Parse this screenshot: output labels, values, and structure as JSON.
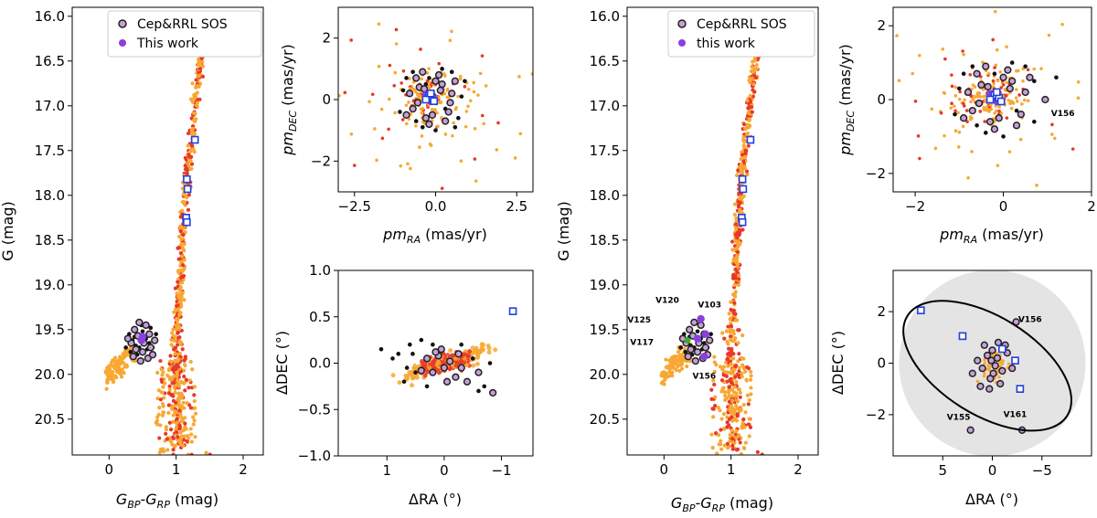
{
  "colors": {
    "orange": "#f7a833",
    "red": "#e8382a",
    "black": "#111111",
    "member_fill": "#c79fd6",
    "member_edge": "#222222",
    "purple": "#8a3fe0",
    "blue": "#1f3fe0",
    "green": "#33b033",
    "disk": "#e4e4e4"
  },
  "legend_left": {
    "entry1": "Cep&RRL SOS",
    "entry2": "This work"
  },
  "legend_right": {
    "entry1": "Cep&RRL SOS",
    "entry2": "this work"
  },
  "chart_data": [
    {
      "id": "cmd_left",
      "type": "scatter",
      "xlabel_main": "G",
      "xlabel_sub1": "BP",
      "xlabel_dash": "-G",
      "xlabel_sub2": "RP",
      "xlabel_unit": " (mag)",
      "ylabel": "G (mag)",
      "xlim": [
        -0.55,
        2.3
      ],
      "ylim": [
        20.9,
        15.9
      ],
      "xticks": [
        0,
        1,
        2
      ],
      "yticks": [
        16.0,
        16.5,
        17.0,
        17.5,
        18.0,
        18.5,
        19.0,
        19.5,
        20.0,
        20.5
      ],
      "blue_squares": [
        [
          1.28,
          17.38
        ],
        [
          1.16,
          17.82
        ],
        [
          1.17,
          17.93
        ],
        [
          1.15,
          18.25
        ],
        [
          1.16,
          18.3
        ]
      ],
      "purple_points": [
        [
          0.48,
          19.62
        ],
        [
          0.5,
          19.58
        ]
      ],
      "member_points": [
        [
          0.38,
          19.5
        ],
        [
          0.45,
          19.42
        ],
        [
          0.55,
          19.45
        ],
        [
          0.6,
          19.55
        ],
        [
          0.62,
          19.7
        ],
        [
          0.5,
          19.75
        ],
        [
          0.4,
          19.72
        ],
        [
          0.33,
          19.65
        ],
        [
          0.47,
          19.85
        ],
        [
          0.58,
          19.82
        ],
        [
          0.68,
          19.62
        ],
        [
          0.28,
          19.6
        ],
        [
          0.52,
          19.65
        ],
        [
          0.43,
          19.57
        ],
        [
          0.36,
          19.8
        ],
        [
          0.65,
          19.78
        ]
      ],
      "black_points": [
        [
          0.3,
          19.55
        ],
        [
          0.35,
          19.62
        ],
        [
          0.4,
          19.68
        ],
        [
          0.45,
          19.7
        ],
        [
          0.55,
          19.6
        ],
        [
          0.6,
          19.65
        ],
        [
          0.42,
          19.78
        ],
        [
          0.5,
          19.52
        ],
        [
          0.65,
          19.7
        ],
        [
          0.32,
          19.75
        ],
        [
          0.7,
          19.55
        ],
        [
          0.25,
          19.7
        ],
        [
          0.57,
          19.72
        ],
        [
          0.38,
          19.58
        ],
        [
          0.48,
          19.45
        ],
        [
          0.62,
          19.48
        ]
      ]
    },
    {
      "id": "pm_left",
      "type": "scatter",
      "xlabel_main": "pm",
      "xlabel_sub": "RA",
      "xlabel_unit": " (mas/yr)",
      "ylabel_main": "pm",
      "ylabel_sub": "DEC",
      "ylabel_unit": " (mas/yr)",
      "xlim": [
        -3.0,
        3.0
      ],
      "ylim": [
        -3.0,
        3.0
      ],
      "xticks": [
        -2.5,
        0.0,
        2.5
      ],
      "yticks": [
        -2,
        0,
        2
      ],
      "purple_points": [
        [
          -0.2,
          0.1
        ],
        [
          -0.1,
          0.0
        ],
        [
          -0.3,
          0.15
        ],
        [
          -0.15,
          -0.05
        ],
        [
          -0.25,
          0.05
        ]
      ],
      "blue_squares": [
        [
          -0.2,
          0.12
        ],
        [
          -0.1,
          0.05
        ],
        [
          -0.3,
          0.0
        ],
        [
          -0.15,
          0.2
        ],
        [
          -0.05,
          -0.05
        ]
      ],
      "member_points": [
        [
          -0.5,
          0.4
        ],
        [
          0.2,
          0.5
        ],
        [
          -0.7,
          -0.3
        ],
        [
          0.4,
          -0.4
        ],
        [
          -0.3,
          -0.6
        ],
        [
          0.1,
          0.8
        ],
        [
          -0.8,
          0.2
        ],
        [
          0.5,
          0.2
        ],
        [
          -0.1,
          -0.5
        ],
        [
          -0.6,
          0.7
        ],
        [
          0.3,
          -0.7
        ],
        [
          -0.4,
          0.9
        ],
        [
          0.6,
          0.6
        ],
        [
          -0.9,
          -0.5
        ],
        [
          0.0,
          0.6
        ],
        [
          -0.2,
          -0.8
        ],
        [
          0.45,
          -0.1
        ],
        [
          -0.55,
          -0.1
        ],
        [
          0.15,
          0.3
        ],
        [
          -0.35,
          0.35
        ]
      ],
      "black_points": [
        [
          0.9,
          0.6
        ],
        [
          -1.0,
          0.3
        ],
        [
          -0.7,
          0.9
        ],
        [
          0.7,
          -0.6
        ],
        [
          -0.4,
          -0.9
        ],
        [
          0.2,
          1.0
        ],
        [
          -1.1,
          -0.4
        ],
        [
          0.5,
          0.9
        ],
        [
          -0.2,
          0.7
        ],
        [
          0.3,
          -0.3
        ],
        [
          -0.6,
          -0.7
        ],
        [
          0.8,
          0.1
        ],
        [
          -0.9,
          0.7
        ],
        [
          0.0,
          -1.0
        ],
        [
          -0.3,
          0.5
        ],
        [
          0.6,
          -0.9
        ]
      ]
    },
    {
      "id": "sky_left",
      "type": "scatter",
      "xlabel": "ΔRA (°)",
      "ylabel": "ΔDEC (°)",
      "xlim": [
        1.85,
        -1.55
      ],
      "ylim": [
        -1.0,
        1.0
      ],
      "xticks": [
        1,
        0,
        -1
      ],
      "yticks": [
        -1.0,
        -0.5,
        0.0,
        0.5,
        1.0
      ],
      "blue_squares": [
        [
          -1.2,
          0.56
        ]
      ],
      "member_points": [
        [
          0.3,
          0.05
        ],
        [
          0.1,
          0.08
        ],
        [
          -0.1,
          0.02
        ],
        [
          -0.3,
          -0.05
        ],
        [
          0.2,
          -0.1
        ],
        [
          -0.2,
          -0.15
        ],
        [
          0.0,
          -0.05
        ],
        [
          0.15,
          0.12
        ],
        [
          -0.4,
          -0.2
        ],
        [
          -0.6,
          -0.1
        ],
        [
          -0.85,
          -0.32
        ],
        [
          -0.25,
          0.1
        ],
        [
          0.4,
          -0.08
        ],
        [
          -0.05,
          -0.2
        ],
        [
          0.05,
          0.15
        ]
      ],
      "black_points": [
        [
          0.6,
          0.2
        ],
        [
          0.8,
          0.1
        ],
        [
          0.5,
          -0.1
        ],
        [
          0.7,
          -0.2
        ],
        [
          0.4,
          0.25
        ],
        [
          -0.5,
          0.05
        ],
        [
          -0.7,
          -0.25
        ],
        [
          0.9,
          0.05
        ],
        [
          0.3,
          -0.25
        ],
        [
          -0.3,
          0.2
        ],
        [
          -0.8,
          0.0
        ],
        [
          0.55,
          0.1
        ],
        [
          -0.6,
          -0.3
        ],
        [
          0.2,
          0.2
        ],
        [
          1.1,
          0.15
        ],
        [
          0.65,
          -0.05
        ]
      ]
    },
    {
      "id": "cmd_right",
      "type": "scatter",
      "xlabel_main": "G",
      "xlabel_sub1": "BP",
      "xlabel_dash": "-G",
      "xlabel_sub2": "RP",
      "xlabel_unit": " (mag)",
      "ylabel": "G (mag)",
      "xlim": [
        -0.55,
        2.3
      ],
      "ylim": [
        20.9,
        15.9
      ],
      "xticks": [
        0,
        1,
        2
      ],
      "yticks": [
        16.0,
        16.5,
        17.0,
        17.5,
        18.0,
        18.5,
        19.0,
        19.5,
        20.0,
        20.5
      ],
      "blue_squares": [
        [
          1.29,
          17.38
        ],
        [
          1.17,
          17.82
        ],
        [
          1.18,
          17.93
        ],
        [
          1.16,
          18.25
        ],
        [
          1.17,
          18.3
        ]
      ],
      "purple_points": [
        [
          0.55,
          19.38
        ],
        [
          0.6,
          19.8
        ],
        [
          0.5,
          19.6
        ],
        [
          0.62,
          19.55
        ]
      ],
      "member_points": [
        [
          0.38,
          19.5
        ],
        [
          0.45,
          19.42
        ],
        [
          0.55,
          19.45
        ],
        [
          0.6,
          19.55
        ],
        [
          0.62,
          19.7
        ],
        [
          0.5,
          19.75
        ],
        [
          0.4,
          19.72
        ],
        [
          0.33,
          19.65
        ],
        [
          0.47,
          19.85
        ],
        [
          0.58,
          19.82
        ],
        [
          0.68,
          19.62
        ],
        [
          0.28,
          19.6
        ],
        [
          0.52,
          19.65
        ],
        [
          0.43,
          19.57
        ],
        [
          0.36,
          19.8
        ],
        [
          0.65,
          19.78
        ]
      ],
      "black_points": [
        [
          0.3,
          19.55
        ],
        [
          0.35,
          19.62
        ],
        [
          0.4,
          19.68
        ],
        [
          0.45,
          19.7
        ],
        [
          0.55,
          19.6
        ],
        [
          0.6,
          19.65
        ],
        [
          0.42,
          19.78
        ],
        [
          0.5,
          19.52
        ],
        [
          0.65,
          19.7
        ],
        [
          0.32,
          19.75
        ],
        [
          0.7,
          19.55
        ],
        [
          0.25,
          19.7
        ],
        [
          0.57,
          19.72
        ],
        [
          0.38,
          19.58
        ]
      ],
      "green_points": [
        [
          0.35,
          19.62
        ]
      ],
      "annotations": [
        {
          "text": "V120",
          "x": 0.05,
          "y": 19.2
        },
        {
          "text": "V103",
          "x": 0.68,
          "y": 19.25
        },
        {
          "text": "V125",
          "x": -0.37,
          "y": 19.42
        },
        {
          "text": "V117",
          "x": -0.33,
          "y": 19.67
        },
        {
          "text": "V156",
          "x": 0.6,
          "y": 20.05
        }
      ]
    },
    {
      "id": "pm_right",
      "type": "scatter",
      "xlabel_main": "pm",
      "xlabel_sub": "RA",
      "xlabel_unit": " (mas/yr)",
      "ylabel_main": "pm",
      "ylabel_sub": "DEC",
      "ylabel_unit": " (mas/yr)",
      "xlim": [
        -2.5,
        2.0
      ],
      "ylim": [
        -2.5,
        2.5
      ],
      "xticks": [
        -2,
        0,
        2
      ],
      "yticks": [
        -2,
        0,
        2
      ],
      "purple_points": [
        [
          -0.2,
          0.1
        ],
        [
          -0.1,
          0.0
        ],
        [
          -0.3,
          0.15
        ],
        [
          -0.15,
          -0.05
        ],
        [
          -0.25,
          0.05
        ]
      ],
      "blue_squares": [
        [
          -0.2,
          0.12
        ],
        [
          -0.1,
          0.05
        ],
        [
          -0.3,
          0.0
        ],
        [
          -0.15,
          0.2
        ],
        [
          -0.05,
          -0.05
        ]
      ],
      "member_points": [
        [
          -0.5,
          0.4
        ],
        [
          0.2,
          0.5
        ],
        [
          -0.7,
          -0.3
        ],
        [
          0.4,
          -0.4
        ],
        [
          -0.3,
          -0.6
        ],
        [
          0.1,
          0.8
        ],
        [
          -0.8,
          0.2
        ],
        [
          0.5,
          0.2
        ],
        [
          -0.1,
          -0.5
        ],
        [
          -0.6,
          0.7
        ],
        [
          0.3,
          -0.7
        ],
        [
          -0.4,
          0.9
        ],
        [
          0.6,
          0.6
        ],
        [
          -0.9,
          -0.5
        ],
        [
          0.0,
          0.6
        ],
        [
          -0.2,
          -0.8
        ],
        [
          0.95,
          0.0
        ],
        [
          -0.55,
          -0.1
        ],
        [
          0.15,
          0.3
        ],
        [
          -0.35,
          0.35
        ]
      ],
      "black_points": [
        [
          0.7,
          0.5
        ],
        [
          -1.0,
          0.3
        ],
        [
          -0.7,
          0.9
        ],
        [
          0.7,
          -0.6
        ],
        [
          -0.4,
          -0.9
        ],
        [
          0.2,
          1.0
        ],
        [
          -1.1,
          -0.4
        ],
        [
          0.5,
          0.9
        ],
        [
          -0.2,
          0.7
        ],
        [
          0.3,
          -0.3
        ],
        [
          -0.6,
          -0.7
        ],
        [
          1.2,
          0.6
        ],
        [
          -0.9,
          0.7
        ],
        [
          0.0,
          -1.0
        ]
      ],
      "annotations": [
        {
          "text": "V156",
          "x": 1.35,
          "y": -0.45
        }
      ]
    },
    {
      "id": "sky_right",
      "type": "scatter",
      "xlabel": "ΔRA (°)",
      "ylabel": "ΔDEC (°)",
      "xlim": [
        10.0,
        -10.0
      ],
      "ylim": [
        -3.6,
        3.6
      ],
      "xticks": [
        5,
        0,
        -5
      ],
      "yticks": [
        -2,
        0,
        2
      ],
      "ellipse": {
        "cx": 0.5,
        "cy": -0.1,
        "rx": 9.5,
        "ry": 1.9,
        "angle_deg": -32
      },
      "blue_squares": [
        [
          7.2,
          2.05
        ],
        [
          3.0,
          1.05
        ],
        [
          -1.0,
          0.55
        ],
        [
          -2.3,
          0.1
        ],
        [
          -2.8,
          -1.0
        ]
      ],
      "member_points": [
        [
          0.5,
          0.3
        ],
        [
          -0.5,
          0.2
        ],
        [
          1.0,
          -0.2
        ],
        [
          -1.0,
          -0.3
        ],
        [
          0.0,
          0.5
        ],
        [
          0.2,
          -0.6
        ],
        [
          -0.3,
          -0.1
        ],
        [
          1.5,
          0.1
        ],
        [
          -1.5,
          0.4
        ],
        [
          0.8,
          0.7
        ],
        [
          -0.8,
          -0.8
        ],
        [
          2.0,
          -0.4
        ],
        [
          -2.0,
          -0.2
        ],
        [
          0.3,
          -1.0
        ],
        [
          -0.6,
          0.8
        ],
        [
          1.2,
          -0.9
        ],
        [
          -1.3,
          0.7
        ],
        [
          -2.4,
          1.6
        ],
        [
          2.2,
          -2.6
        ],
        [
          -3.0,
          -2.6
        ],
        [
          0.1,
          0.1
        ],
        [
          -0.1,
          -0.4
        ]
      ],
      "annotations": [
        {
          "text": "V156",
          "x": -3.8,
          "y": 1.6
        },
        {
          "text": "V155",
          "x": 3.4,
          "y": -2.2
        },
        {
          "text": "V161",
          "x": -2.3,
          "y": -2.1
        }
      ]
    }
  ]
}
